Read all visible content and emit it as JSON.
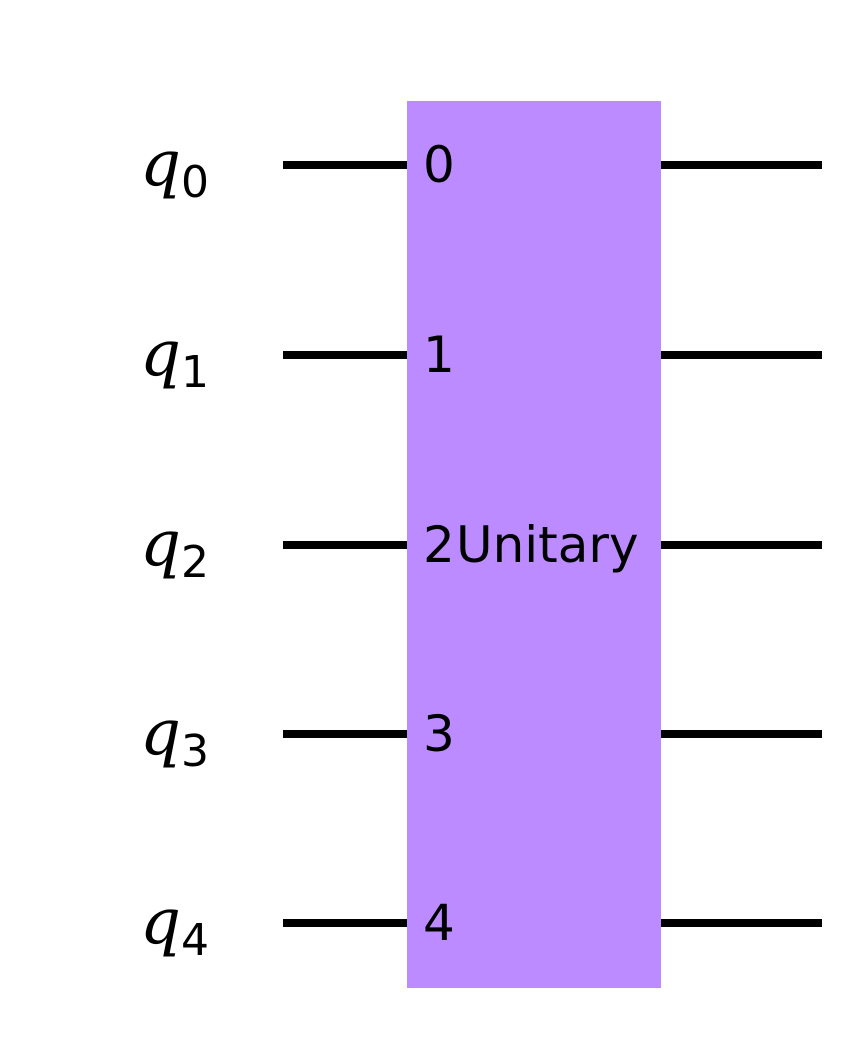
{
  "colors": {
    "background": "#ffffff",
    "wire": "#000000",
    "gate_fill": "#bb8bff",
    "text": "#000000"
  },
  "qubits": [
    {
      "symbol": "q",
      "index": "0"
    },
    {
      "symbol": "q",
      "index": "1"
    },
    {
      "symbol": "q",
      "index": "2"
    },
    {
      "symbol": "q",
      "index": "3"
    },
    {
      "symbol": "q",
      "index": "4"
    }
  ],
  "gate": {
    "name": "Unitary",
    "port_labels": [
      "0",
      "1",
      "2",
      "3",
      "4"
    ]
  }
}
